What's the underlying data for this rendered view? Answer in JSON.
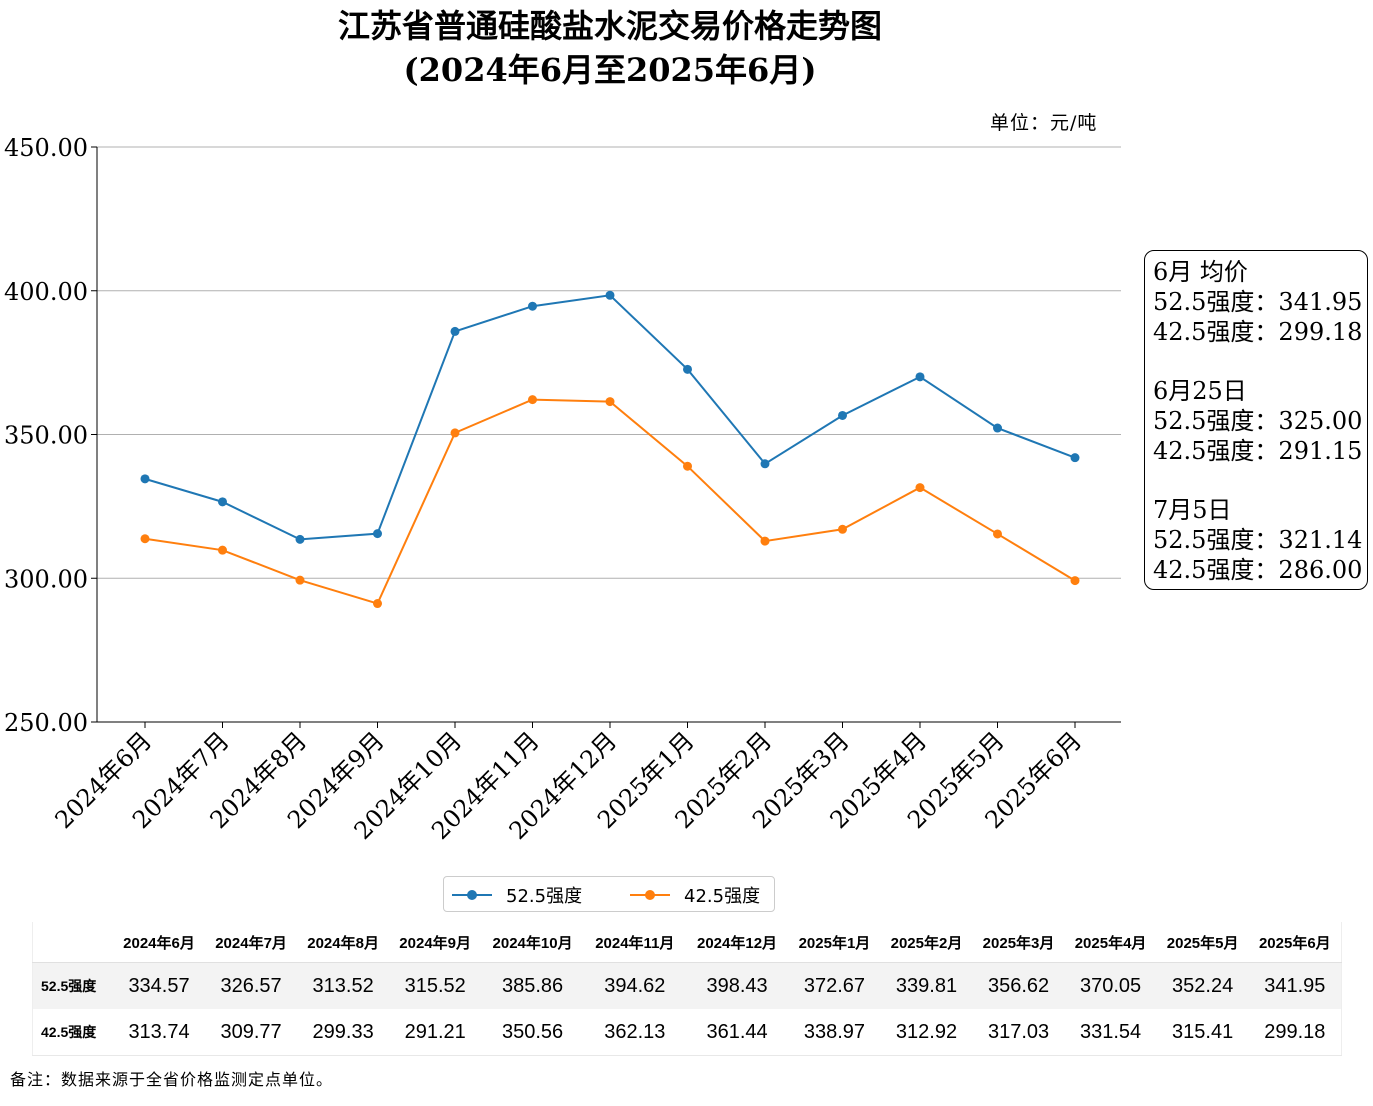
{
  "title_line1": "江苏省普通硅酸盐水泥交易价格走势图",
  "title_line2": "(2024年6月至2025年6月)",
  "unit_label": "单位：元/吨",
  "info_box": [
    {
      "heading": "6月 均价",
      "line1": "52.5强度：341.95",
      "line2": "42.5强度：299.18"
    },
    {
      "heading": "6月25日",
      "line1": "52.5强度：325.00",
      "line2": "42.5强度：291.15"
    },
    {
      "heading": "7月5日",
      "line1": "52.5强度：321.14",
      "line2": "42.5强度：286.00"
    }
  ],
  "chart_data": {
    "type": "line",
    "categories": [
      "2024年6月",
      "2024年7月",
      "2024年8月",
      "2024年9月",
      "2024年10月",
      "2024年11月",
      "2024年12月",
      "2025年1月",
      "2025年2月",
      "2025年3月",
      "2025年4月",
      "2025年5月",
      "2025年6月"
    ],
    "series": [
      {
        "name": "52.5强度",
        "color": "#1f77b4",
        "values": [
          334.57,
          326.57,
          313.52,
          315.52,
          385.86,
          394.62,
          398.43,
          372.67,
          339.81,
          356.62,
          370.05,
          352.24,
          341.95
        ]
      },
      {
        "name": "42.5强度",
        "color": "#ff7f0e",
        "values": [
          313.74,
          309.77,
          299.33,
          291.21,
          350.56,
          362.13,
          361.44,
          338.97,
          312.92,
          317.03,
          331.54,
          315.41,
          299.18
        ]
      }
    ],
    "ylim": [
      250,
      450
    ],
    "yticks": [
      "250.00",
      "300.00",
      "350.00",
      "400.00",
      "450.00"
    ],
    "grid": "horizontal",
    "legend": "bottom-center"
  },
  "table": {
    "headers": [
      "2024年6月",
      "2024年7月",
      "2024年8月",
      "2024年9月",
      "2024年10月",
      "2024年11月",
      "2024年12月",
      "2025年1月",
      "2025年2月",
      "2025年3月",
      "2025年4月",
      "2025年5月",
      "2025年6月"
    ],
    "rows": [
      {
        "label": "52.5强度",
        "values": [
          "334.57",
          "326.57",
          "313.52",
          "315.52",
          "385.86",
          "394.62",
          "398.43",
          "372.67",
          "339.81",
          "356.62",
          "370.05",
          "352.24",
          "341.95"
        ]
      },
      {
        "label": "42.5强度",
        "values": [
          "313.74",
          "309.77",
          "299.33",
          "291.21",
          "350.56",
          "362.13",
          "361.44",
          "338.97",
          "312.92",
          "317.03",
          "331.54",
          "315.41",
          "299.18"
        ]
      }
    ]
  },
  "footnote": "备注：数据来源于全省价格监测定点单位。"
}
